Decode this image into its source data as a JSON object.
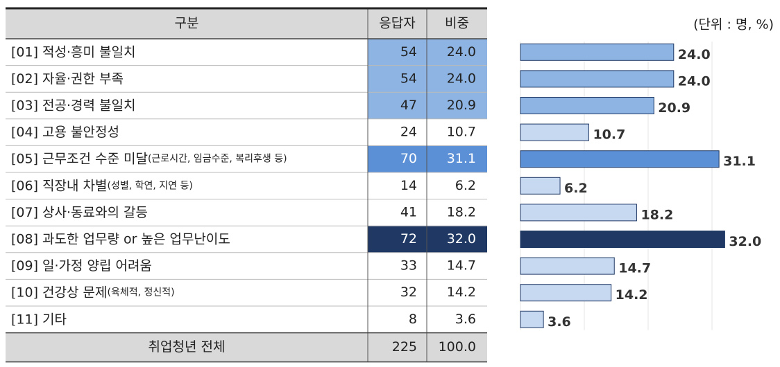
{
  "unit_note": "(단위 : 명, %)",
  "table": {
    "headers": [
      "구분",
      "응답자",
      "비중"
    ],
    "rows": [
      {
        "label": "[01] 적성·흥미 불일치",
        "count": 54,
        "share": "24.0",
        "fill": "#8db4e2"
      },
      {
        "label": "[02] 자율·권한 부족",
        "count": 54,
        "share": "24.0",
        "fill": "#8db4e2"
      },
      {
        "label": "[03] 전공·경력 불일치",
        "count": 47,
        "share": "20.9",
        "fill": "#8db4e2"
      },
      {
        "label": "[04] 고용 불안정성",
        "count": 24,
        "share": "10.7"
      },
      {
        "label": "[05] 근무조건 수준 미달",
        "note": "(근로시간, 임금수준, 복리후생 등)",
        "count": 70,
        "share": "31.1",
        "fill": "#5b8fd6"
      },
      {
        "label": "[06] 직장내 차별",
        "note": "(성별, 학연, 지연 등)",
        "count": 14,
        "share": "6.2"
      },
      {
        "label": "[07] 상사·동료와의 갈등",
        "count": 41,
        "share": "18.2"
      },
      {
        "label": "[08] 과도한 업무량 or 높은 업무난이도",
        "count": 72,
        "share": "32.0",
        "fill": "#1f3864"
      },
      {
        "label": "[09] 일·가정 양립 어려움",
        "count": 33,
        "share": "14.7"
      },
      {
        "label": "[10] 건강상 문제",
        "note": "(육체적, 정신적)",
        "count": 32,
        "share": "14.2"
      },
      {
        "label": "[11] 기타",
        "count": 8,
        "share": "3.6"
      }
    ],
    "total": {
      "label": "취업청년 전체",
      "count": 225,
      "share": "100.0"
    }
  },
  "chart_data": {
    "type": "bar",
    "orientation": "horizontal",
    "values": [
      24.0,
      24.0,
      20.9,
      10.7,
      31.1,
      6.2,
      18.2,
      32.0,
      14.7,
      14.2,
      3.6
    ],
    "value_labels": [
      "24.0",
      "24.0",
      "20.9",
      "10.7",
      "31.1",
      "6.2",
      "18.2",
      "32.0",
      "14.7",
      "14.2",
      "3.6"
    ],
    "colors": [
      "#8db4e2",
      "#8db4e2",
      "#8db4e2",
      "#c6d9f1",
      "#5b8fd6",
      "#c6d9f1",
      "#c6d9f1",
      "#1f3864",
      "#c6d9f1",
      "#c6d9f1",
      "#c6d9f1"
    ],
    "xlim": [
      0,
      35
    ],
    "xticks": [
      0,
      10,
      20,
      30
    ],
    "grid": true
  }
}
